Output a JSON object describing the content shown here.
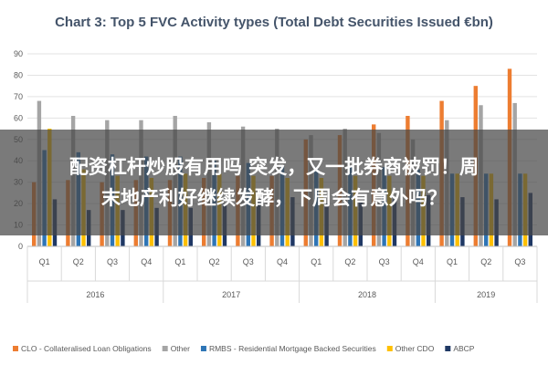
{
  "chart_data": {
    "type": "bar",
    "title": "Chart 3: Top 5 FVC Activity types (Total Debt Securities Issued €bn)",
    "ylim": [
      0,
      90
    ],
    "yticks": [
      0,
      10,
      20,
      30,
      40,
      50,
      60,
      70,
      80,
      90
    ],
    "grid": true,
    "legend_position": "bottom",
    "categories": [
      "Q1",
      "Q2",
      "Q3",
      "Q4",
      "Q1",
      "Q2",
      "Q3",
      "Q4",
      "Q1",
      "Q2",
      "Q3",
      "Q4",
      "Q1",
      "Q2",
      "Q3"
    ],
    "years": [
      {
        "label": "2016",
        "quarters": 4
      },
      {
        "label": "2017",
        "quarters": 4
      },
      {
        "label": "2018",
        "quarters": 4
      },
      {
        "label": "2019",
        "quarters": 3
      }
    ],
    "series": [
      {
        "name": "CLO - Collateralised Loan Obligations",
        "color": "#ed7d31",
        "values": [
          30,
          31,
          30,
          31,
          31,
          32,
          33,
          33,
          50,
          52,
          57,
          61,
          68,
          75,
          83
        ]
      },
      {
        "name": "Other",
        "color": "#a5a5a5",
        "values": [
          68,
          61,
          59,
          59,
          61,
          58,
          56,
          55,
          52,
          55,
          53,
          50,
          59,
          66,
          67
        ]
      },
      {
        "name": "RMBS - Residential Mortgage Backed Securities",
        "color": "#2e75b6",
        "values": [
          45,
          44,
          43,
          42,
          42,
          40,
          39,
          38,
          37,
          37,
          37,
          36,
          34,
          34,
          34
        ]
      },
      {
        "name": "Other CDO",
        "color": "#ffc000",
        "values": [
          55,
          36,
          33,
          32,
          34,
          34,
          33,
          32,
          32,
          33,
          33,
          33,
          34,
          34,
          34
        ]
      },
      {
        "name": "ABCP",
        "color": "#1f3864",
        "values": [
          22,
          17,
          17,
          18,
          18,
          20,
          22,
          23,
          20,
          21,
          22,
          24,
          23,
          22,
          25
        ]
      }
    ]
  },
  "overlay": {
    "line1": "配资杠杆炒股有用吗 突发，又一批券商被罚！周",
    "line2": "末地产利好继续发酵，下周会有意外吗？"
  }
}
